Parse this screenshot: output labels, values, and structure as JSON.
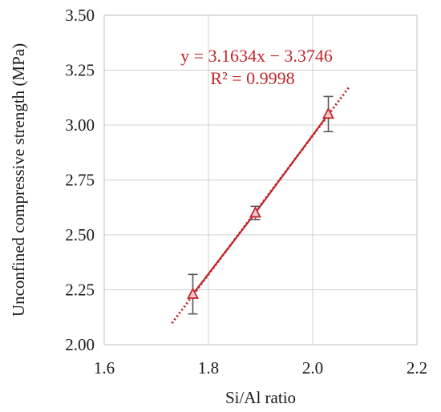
{
  "chart_data": {
    "type": "scatter",
    "xlabel": "Si/Al ratio",
    "ylabel": "Unconfined compressive strength (MPa)",
    "xlim": [
      1.6,
      2.2
    ],
    "ylim": [
      2.0,
      3.5
    ],
    "x_ticks": [
      "1.6",
      "1.8",
      "2.0",
      "2.2"
    ],
    "y_ticks": [
      "2.00",
      "2.25",
      "2.50",
      "2.75",
      "3.00",
      "3.25",
      "3.50"
    ],
    "grid": "major gridlines on both axes",
    "series": [
      {
        "marker": "triangle",
        "color": "#c0282d",
        "x": [
          1.77,
          1.89,
          2.03
        ],
        "y": [
          2.23,
          2.6,
          3.05
        ],
        "error_low": [
          2.14,
          2.57,
          2.97
        ],
        "error_high": [
          2.32,
          2.63,
          3.13
        ]
      }
    ],
    "trendline": {
      "type": "linear",
      "slope": 3.1634,
      "intercept": -3.3746,
      "x_range": [
        1.73,
        2.07
      ],
      "equation": "y = 3.1634x − 3.3746",
      "r_squared": "R² = 0.9998",
      "color": "#c0282d"
    }
  }
}
